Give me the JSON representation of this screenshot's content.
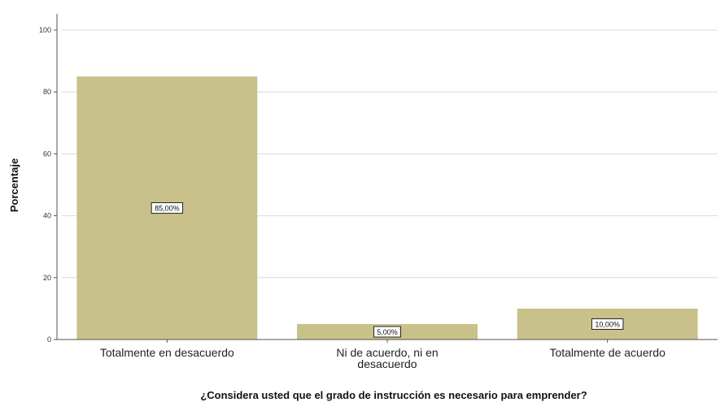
{
  "chart_data": {
    "type": "bar",
    "categories": [
      "Totalmente en desacuerdo",
      "Ni de acuerdo, ni en desacuerdo",
      "Totalmente de acuerdo"
    ],
    "category_label_lines": [
      [
        "Totalmente en desacuerdo"
      ],
      [
        "Ni de acuerdo, ni en",
        "desacuerdo"
      ],
      [
        "Totalmente de acuerdo"
      ]
    ],
    "values": [
      85,
      5,
      10
    ],
    "data_labels": [
      "85,00%",
      "5,00%",
      "10,00%"
    ],
    "title": "",
    "xlabel": "¿Considera usted que el grado de instrucción es necesario para emprender?",
    "ylabel": "Porcentaje",
    "ylim": [
      0,
      100
    ],
    "yticks": [
      0,
      20,
      40,
      60,
      80,
      100
    ],
    "grid": true,
    "legend": "none",
    "colors": {
      "bar": "#c8c189",
      "grid": "#dcdcdc",
      "axis": "#555555"
    }
  }
}
